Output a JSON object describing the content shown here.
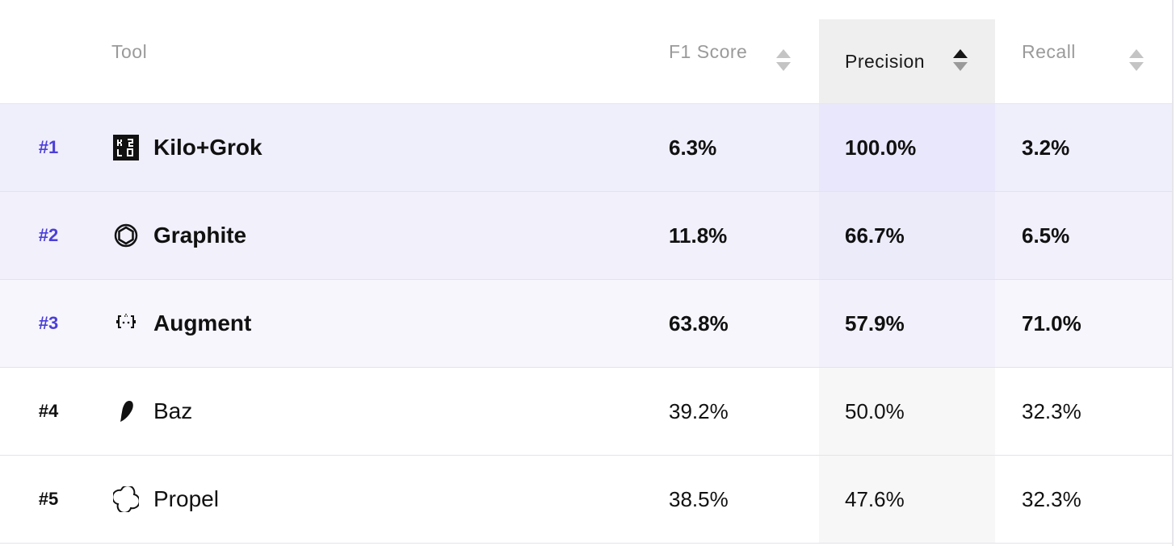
{
  "columns": {
    "tool": "Tool",
    "f1": "F1 Score",
    "precision": "Precision",
    "recall": "Recall"
  },
  "sort": {
    "column": "precision",
    "direction": "descending"
  },
  "rows": [
    {
      "rank": "#1",
      "tool": "Kilo+Grok",
      "logo_icon": "kilo-logo-icon",
      "f1": "6.3%",
      "precision": "100.0%",
      "recall": "3.2%"
    },
    {
      "rank": "#2",
      "tool": "Graphite",
      "logo_icon": "graphite-logo-icon",
      "f1": "11.8%",
      "precision": "66.7%",
      "recall": "6.5%"
    },
    {
      "rank": "#3",
      "tool": "Augment",
      "logo_icon": "augment-logo-icon",
      "f1": "63.8%",
      "precision": "57.9%",
      "recall": "71.0%"
    },
    {
      "rank": "#4",
      "tool": "Baz",
      "logo_icon": "baz-logo-icon",
      "f1": "39.2%",
      "precision": "50.0%",
      "recall": "32.3%"
    },
    {
      "rank": "#5",
      "tool": "Propel",
      "logo_icon": "propel-logo-icon",
      "f1": "38.5%",
      "precision": "47.6%",
      "recall": "32.3%"
    }
  ],
  "colors": {
    "top_rank_text": "#4b3fd8",
    "row1_bg": "#efeefb",
    "row2_bg": "#f1f0fb",
    "row3_bg": "#f7f6fd",
    "precision_header_bg": "#efefef"
  }
}
